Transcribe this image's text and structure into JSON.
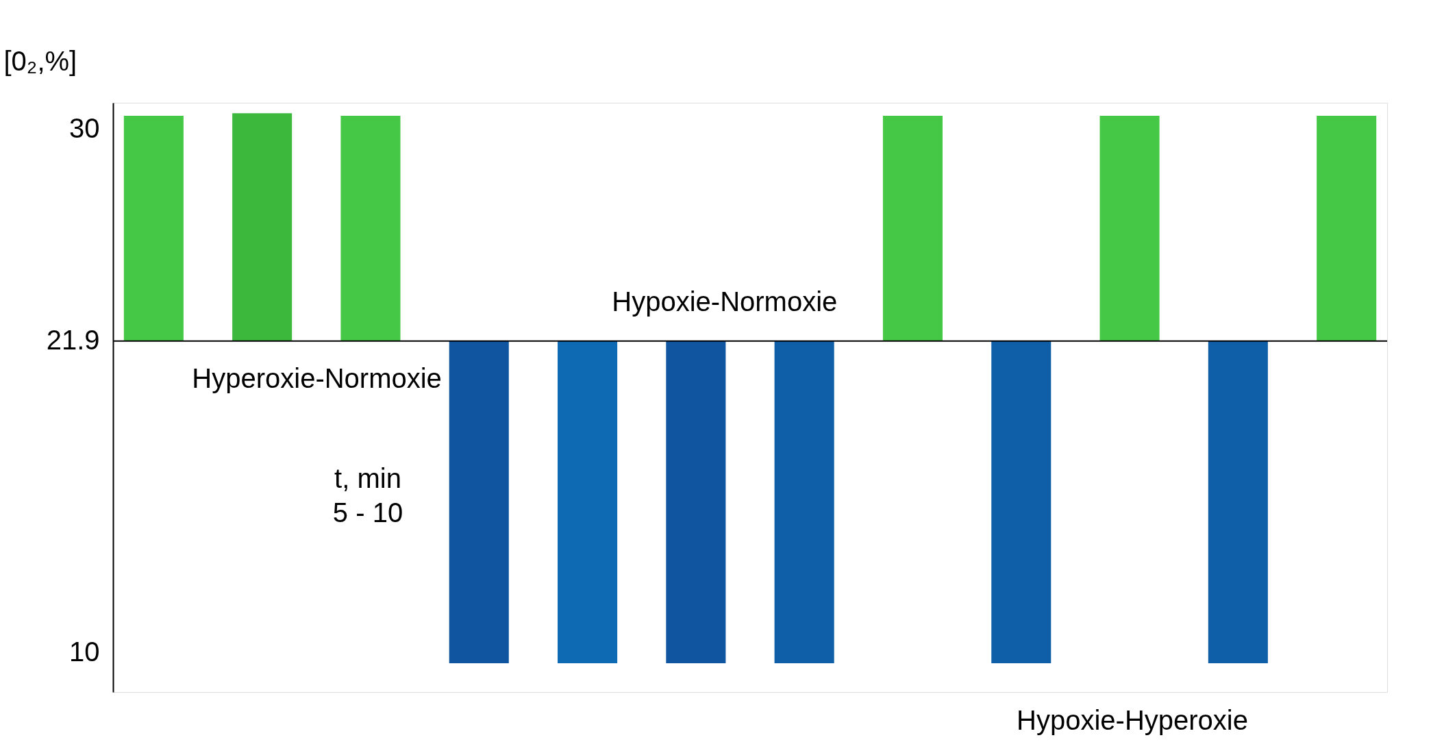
{
  "chart_data": {
    "type": "bar",
    "ylabel": "[0₂,%]",
    "xlabel": "t, min\n5 - 10",
    "categories": [
      null,
      null,
      null,
      null,
      null,
      null,
      null,
      null,
      null,
      null,
      null,
      null
    ],
    "base": [
      21.9,
      21.9,
      21.9,
      21.9,
      21.9,
      21.9,
      21.9,
      21.9,
      21.9,
      21.9,
      21.9,
      21.9
    ],
    "values": [
      8.6,
      8.7,
      8.6,
      -12.3,
      -12.3,
      -12.3,
      -12.3,
      8.6,
      -12.3,
      8.6,
      -12.3,
      8.6
    ],
    "colors": [
      "#45c845",
      "#3cb83c",
      "#45c845",
      "#0f55a0",
      "#0f6ab4",
      "#0f55a0",
      "#0f5ea8",
      "#45c845",
      "#0f5ea8",
      "#45c845",
      "#0f5ea8",
      "#45c845"
    ],
    "ylim": [
      8.5,
      31
    ],
    "yticks": [
      10,
      21.9,
      30
    ],
    "tick_labels": "y",
    "grid": false,
    "ref_lines": [
      {
        "axis": "y",
        "value": 21.9
      }
    ],
    "annotations": [
      "Hyperoxie-Normoxie",
      "Hypoxie-Normoxie",
      "Hypoxie-Hyperoxie"
    ]
  }
}
